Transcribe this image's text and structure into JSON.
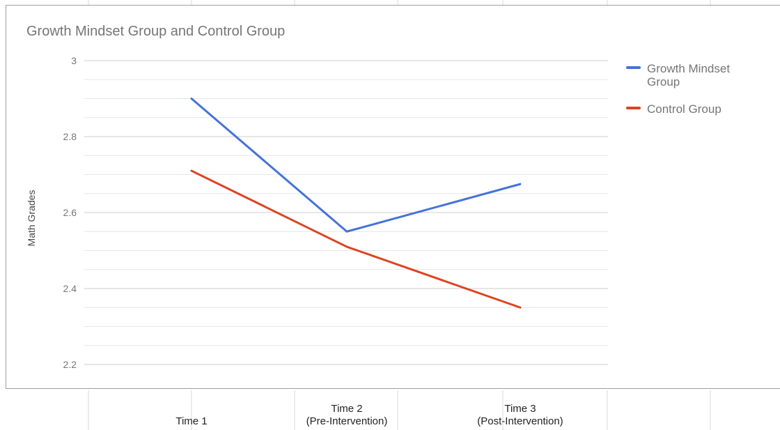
{
  "colors": {
    "growth": "#4472d9",
    "control": "#dc4420",
    "grid_major": "#cccccc",
    "grid_minor": "#e6e6e6",
    "tick_text": "#757575",
    "axis_text": "#222222",
    "cell_border": "#dadada"
  },
  "chart_data": {
    "type": "line",
    "title": "Growth Mindset Group and Control Group",
    "xlabel": "",
    "ylabel": "Math Grades",
    "categories": [
      [
        "Time 1"
      ],
      [
        "Time 2",
        "(Pre-Intervention)"
      ],
      [
        "Time 3",
        "(Post-Intervention)"
      ]
    ],
    "series": [
      {
        "name": "Growth Mindset Group",
        "legend_lines": [
          "Growth Mindset",
          "Group"
        ],
        "values": [
          2.9,
          2.55,
          2.675
        ],
        "color": "#4472d9"
      },
      {
        "name": "Control Group",
        "legend_lines": [
          "Control Group"
        ],
        "values": [
          2.71,
          2.51,
          2.35
        ],
        "color": "#dc4420"
      }
    ],
    "ylim": [
      2.2,
      3.0
    ],
    "yticks": [
      "2.2",
      "2.4",
      "2.6",
      "2.8",
      "3"
    ],
    "minor_gridlines_per_interval": 3,
    "grid": true,
    "legend_position": "right"
  }
}
